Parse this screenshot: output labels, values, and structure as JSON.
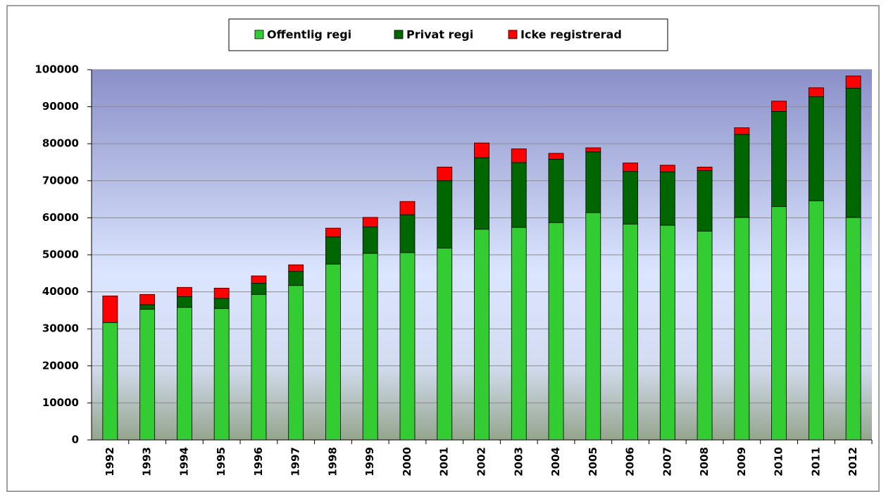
{
  "chart_data": {
    "type": "stacked_bar",
    "categories": [
      "1992",
      "1993",
      "1994",
      "1995",
      "1996",
      "1997",
      "1998",
      "1999",
      "2000",
      "2001",
      "2002",
      "2003",
      "2004",
      "2005",
      "2006",
      "2007",
      "2008",
      "2009",
      "2010",
      "2011",
      "2012"
    ],
    "series": [
      {
        "name": "Offentlig regi",
        "color": "#33cc33",
        "values": [
          31700,
          35300,
          35800,
          35500,
          39300,
          41700,
          47500,
          50400,
          50600,
          51800,
          56900,
          57400,
          58700,
          61400,
          58300,
          58000,
          56400,
          60100,
          63000,
          64600,
          60100
        ]
      },
      {
        "name": "Privat regi",
        "color": "#006600",
        "values": [
          0,
          1200,
          2900,
          2700,
          3000,
          3800,
          7300,
          7100,
          10200,
          18200,
          19300,
          17500,
          17100,
          16400,
          14200,
          14400,
          16300,
          22400,
          25700,
          28100,
          34900
        ]
      },
      {
        "name": "Icke registrerad",
        "color": "#ff0000",
        "values": [
          7200,
          2800,
          2500,
          2800,
          2000,
          1800,
          2400,
          2600,
          3600,
          3700,
          4000,
          3700,
          1600,
          1100,
          2300,
          1800,
          1000,
          1800,
          2800,
          2400,
          3300
        ]
      }
    ],
    "ylim": [
      0,
      100000
    ],
    "yticks": [
      0,
      10000,
      20000,
      30000,
      40000,
      50000,
      60000,
      70000,
      80000,
      90000,
      100000
    ],
    "grid": true,
    "legend": "top"
  }
}
